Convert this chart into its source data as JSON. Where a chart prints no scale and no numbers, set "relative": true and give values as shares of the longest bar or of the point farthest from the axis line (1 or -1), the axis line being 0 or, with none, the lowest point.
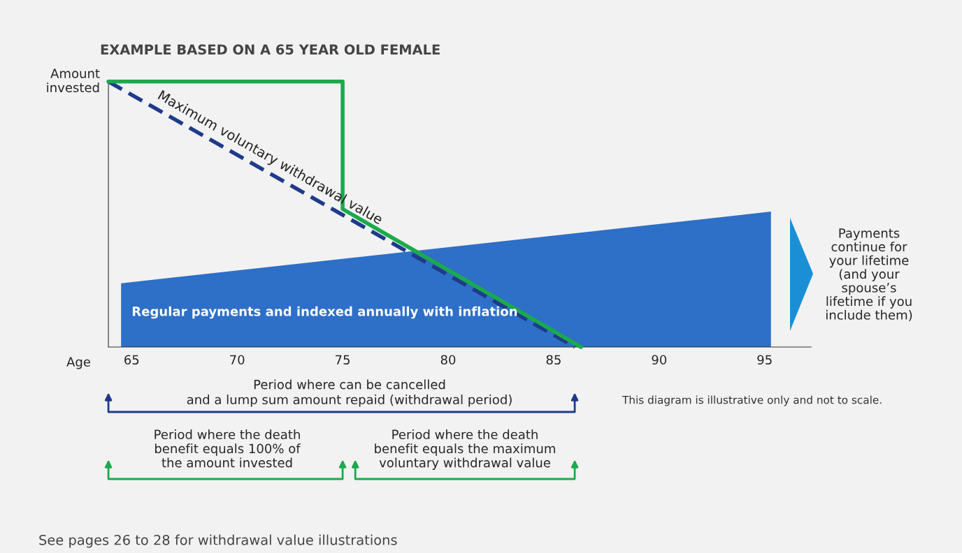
{
  "chart_data": {
    "type": "line",
    "relative": true,
    "title": "EXAMPLE BASED ON A 65 YEAR OLD FEMALE",
    "xlabel": "Age",
    "ylabel": "Amount\ninvested",
    "xlim": [
      63.9,
      97.2
    ],
    "xticks": [
      65,
      70,
      75,
      80,
      85,
      90,
      95
    ],
    "grid": false,
    "legend": false,
    "series": [
      {
        "type": "area",
        "name": "Regular payments and indexed annually with inflation",
        "color": "#2e6fc7",
        "x": [
          64.5,
          95.3
        ],
        "values": [
          0.24,
          0.51
        ]
      },
      {
        "type": "line",
        "name": "Maximum voluntary withdrawal value",
        "color": "#1f3a8a",
        "line_style": "dashed",
        "x": [
          63.9,
          86.0
        ],
        "values": [
          1.0,
          0.0
        ]
      },
      {
        "color": "#1aaa4b",
        "line_style": "solid",
        "x": [
          63.9,
          75,
          75,
          86.3
        ],
        "values": [
          1.0,
          1.0,
          0.52,
          0.0
        ]
      }
    ],
    "annotations": [
      "Period where can be cancelled\nand a lump sum amount repaid (withdrawal period)",
      "Period where the death\nbenefit equals 100% of\nthe amount invested",
      "Period where the death\nbenefit equals the maximum\nvoluntary withdrawal value",
      "Payments\ncontinue for\nyour lifetime\n(and your\nspouse’s\nlifetime if you\ninclude them)",
      "This diagram is illustrative only and not to scale.",
      "See pages 26 to 28 for withdrawal value illustrations"
    ]
  }
}
